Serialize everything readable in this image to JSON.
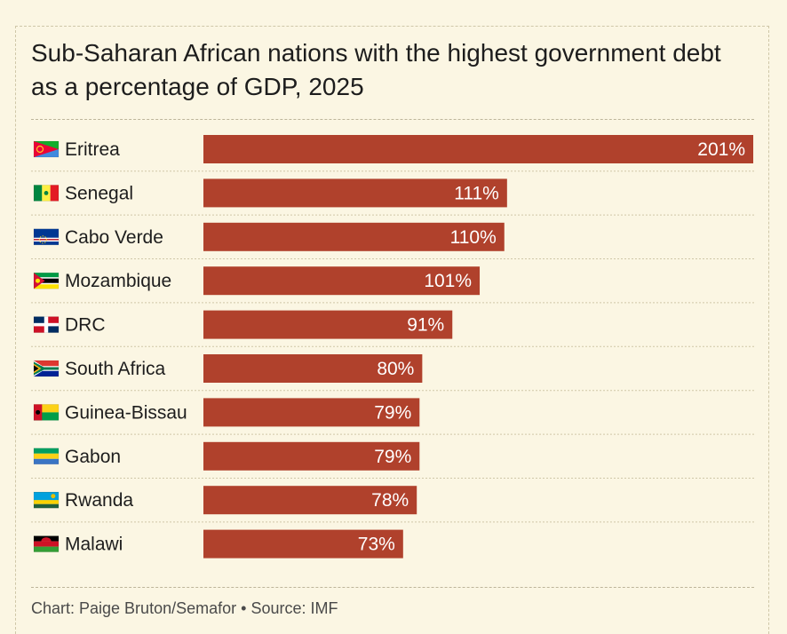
{
  "title": "Sub-Saharan African nations with the highest government debt as a percentage of GDP, 2025",
  "footer": {
    "credit": "Chart: Paige Bruton/Semafor",
    "separator": "•",
    "source": "Source: IMF"
  },
  "colors": {
    "bar": "#b0412c",
    "bar_label": "#ffffff",
    "background": "#fbf6e3",
    "row_rule": "#cfc7a8"
  },
  "chart_data": {
    "type": "bar",
    "orientation": "horizontal",
    "title": "Sub-Saharan African nations with the highest government debt as a percentage of GDP, 2025",
    "categories": [
      "Eritrea",
      "Senegal",
      "Cabo Verde",
      "Mozambique",
      "DRC",
      "South Africa",
      "Guinea-Bissau",
      "Gabon",
      "Rwanda",
      "Malawi"
    ],
    "values": [
      201,
      111,
      110,
      101,
      91,
      80,
      79,
      79,
      78,
      73
    ],
    "value_labels": [
      "201%",
      "111%",
      "110%",
      "101%",
      "91%",
      "80%",
      "79%",
      "79%",
      "78%",
      "73%"
    ],
    "flag_icons": [
      "eritrea-flag-icon",
      "senegal-flag-icon",
      "cabo-verde-flag-icon",
      "mozambique-flag-icon",
      "drc-flag-icon",
      "south-africa-flag-icon",
      "guinea-bissau-flag-icon",
      "gabon-flag-icon",
      "rwanda-flag-icon",
      "malawi-flag-icon"
    ],
    "unit": "%",
    "xlim": [
      0,
      201
    ],
    "grid": false,
    "legend": "none"
  }
}
